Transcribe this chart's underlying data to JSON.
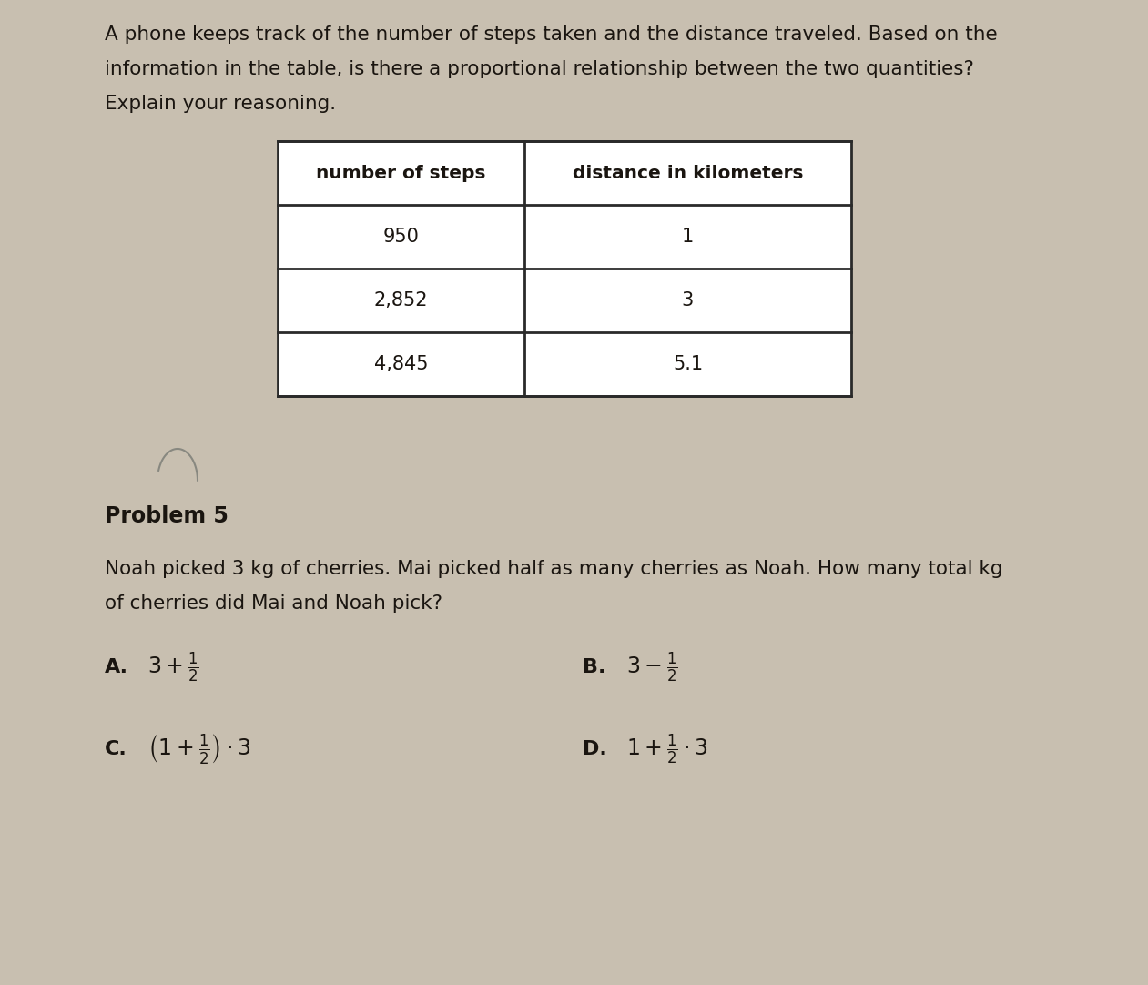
{
  "bg_color": "#c8bfb0",
  "text_color": "#1a1510",
  "intro_text_line1": "A phone keeps track of the number of steps taken and the distance traveled. Based on the",
  "intro_text_line2": "information in the table, is there a proportional relationship between the two quantities?",
  "intro_text_line3": "Explain your reasoning.",
  "table_headers": [
    "number of steps",
    "distance in kilometers"
  ],
  "table_rows": [
    [
      "950",
      "1"
    ],
    [
      "2,852",
      "3"
    ],
    [
      "4,845",
      "5.1"
    ]
  ],
  "problem_label": "Problem 5",
  "problem_text_line1": "Noah picked 3 kg of cherries. Mai picked half as many cherries as Noah. How many total kg",
  "problem_text_line2": "of cherries did Mai and Noah pick?",
  "option_A_label": "A.",
  "option_A_expr": "$3 + \\frac{1}{2}$",
  "option_B_label": "B.",
  "option_B_expr": "$3 - \\frac{1}{2}$",
  "option_C_label": "C.",
  "option_C_expr": "$\\left(1 + \\frac{1}{2}\\right) \\cdot 3$",
  "option_D_label": "D.",
  "option_D_expr": "$1 + \\frac{1}{2} \\cdot 3$"
}
